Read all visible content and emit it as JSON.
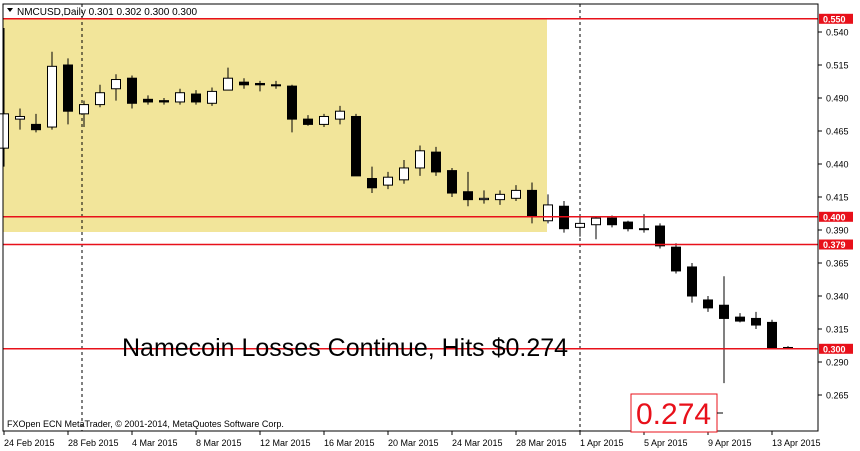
{
  "header": {
    "symbol_line": "NMCUSD,Daily  0.301 0.302 0.300 0.300"
  },
  "headline": "Namecoin Losses Continue, Hits $0.274",
  "copyright": "FXOpen ECN MetaTrader, © 2001-2014, MetaQuotes Software Corp.",
  "callout": "0.274",
  "colors": {
    "level_line": "#e8101a",
    "highlight": "#f2e59a",
    "candle": "#000000",
    "axis": "#000000"
  },
  "chart_data": {
    "type": "candlestick",
    "title": "",
    "ylim": [
      0.255,
      0.555
    ],
    "y_ticks": [
      "0.540",
      "0.515",
      "0.490",
      "0.465",
      "0.440",
      "0.415",
      "0.390",
      "0.365",
      "0.340",
      "0.315",
      "0.290",
      "0.265"
    ],
    "x_ticks": [
      "24 Feb 2015",
      "28 Feb 2015",
      "4 Mar 2015",
      "8 Mar 2015",
      "12 Mar 2015",
      "16 Mar 2015",
      "20 Mar 2015",
      "24 Mar 2015",
      "28 Mar 2015",
      "1 Apr 2015",
      "5 Apr 2015",
      "9 Apr 2015",
      "13 Apr 2015"
    ],
    "levels": [
      {
        "value": 0.55,
        "label": "0.550"
      },
      {
        "value": 0.4,
        "label": "0.400"
      },
      {
        "value": 0.379,
        "label": "0.379"
      },
      {
        "value": 0.3,
        "label": "0.300"
      }
    ],
    "low_annotation": 0.274,
    "candles": [
      {
        "o": 0.452,
        "h": 0.543,
        "l": 0.438,
        "c": 0.478
      },
      {
        "o": 0.474,
        "h": 0.482,
        "l": 0.466,
        "c": 0.476
      },
      {
        "o": 0.47,
        "h": 0.478,
        "l": 0.464,
        "c": 0.466
      },
      {
        "o": 0.468,
        "h": 0.525,
        "l": 0.466,
        "c": 0.514
      },
      {
        "o": 0.515,
        "h": 0.52,
        "l": 0.47,
        "c": 0.48
      },
      {
        "o": 0.478,
        "h": 0.488,
        "l": 0.468,
        "c": 0.485
      },
      {
        "o": 0.485,
        "h": 0.5,
        "l": 0.483,
        "c": 0.494
      },
      {
        "o": 0.497,
        "h": 0.508,
        "l": 0.488,
        "c": 0.504
      },
      {
        "o": 0.505,
        "h": 0.507,
        "l": 0.482,
        "c": 0.486
      },
      {
        "o": 0.489,
        "h": 0.492,
        "l": 0.485,
        "c": 0.487
      },
      {
        "o": 0.488,
        "h": 0.49,
        "l": 0.485,
        "c": 0.487
      },
      {
        "o": 0.487,
        "h": 0.497,
        "l": 0.485,
        "c": 0.494
      },
      {
        "o": 0.493,
        "h": 0.496,
        "l": 0.485,
        "c": 0.487
      },
      {
        "o": 0.486,
        "h": 0.498,
        "l": 0.484,
        "c": 0.495
      },
      {
        "o": 0.496,
        "h": 0.513,
        "l": 0.496,
        "c": 0.505
      },
      {
        "o": 0.502,
        "h": 0.505,
        "l": 0.497,
        "c": 0.5
      },
      {
        "o": 0.501,
        "h": 0.503,
        "l": 0.495,
        "c": 0.5
      },
      {
        "o": 0.5,
        "h": 0.503,
        "l": 0.497,
        "c": 0.5
      },
      {
        "o": 0.499,
        "h": 0.5,
        "l": 0.464,
        "c": 0.474
      },
      {
        "o": 0.474,
        "h": 0.477,
        "l": 0.469,
        "c": 0.47
      },
      {
        "o": 0.47,
        "h": 0.478,
        "l": 0.468,
        "c": 0.476
      },
      {
        "o": 0.474,
        "h": 0.484,
        "l": 0.47,
        "c": 0.48
      },
      {
        "o": 0.476,
        "h": 0.478,
        "l": 0.431,
        "c": 0.431
      },
      {
        "o": 0.429,
        "h": 0.438,
        "l": 0.418,
        "c": 0.422
      },
      {
        "o": 0.424,
        "h": 0.434,
        "l": 0.421,
        "c": 0.43
      },
      {
        "o": 0.428,
        "h": 0.443,
        "l": 0.425,
        "c": 0.437
      },
      {
        "o": 0.437,
        "h": 0.454,
        "l": 0.431,
        "c": 0.45
      },
      {
        "o": 0.449,
        "h": 0.453,
        "l": 0.431,
        "c": 0.434
      },
      {
        "o": 0.435,
        "h": 0.437,
        "l": 0.415,
        "c": 0.418
      },
      {
        "o": 0.419,
        "h": 0.434,
        "l": 0.408,
        "c": 0.413
      },
      {
        "o": 0.413,
        "h": 0.42,
        "l": 0.41,
        "c": 0.414
      },
      {
        "o": 0.413,
        "h": 0.42,
        "l": 0.409,
        "c": 0.417
      },
      {
        "o": 0.414,
        "h": 0.424,
        "l": 0.412,
        "c": 0.42
      },
      {
        "o": 0.42,
        "h": 0.426,
        "l": 0.395,
        "c": 0.4
      },
      {
        "o": 0.397,
        "h": 0.417,
        "l": 0.395,
        "c": 0.409
      },
      {
        "o": 0.408,
        "h": 0.412,
        "l": 0.388,
        "c": 0.391
      },
      {
        "o": 0.392,
        "h": 0.4,
        "l": 0.385,
        "c": 0.395
      },
      {
        "o": 0.394,
        "h": 0.4,
        "l": 0.383,
        "c": 0.399
      },
      {
        "o": 0.399,
        "h": 0.401,
        "l": 0.392,
        "c": 0.394
      },
      {
        "o": 0.396,
        "h": 0.397,
        "l": 0.389,
        "c": 0.391
      },
      {
        "o": 0.391,
        "h": 0.402,
        "l": 0.388,
        "c": 0.391
      },
      {
        "o": 0.393,
        "h": 0.395,
        "l": 0.376,
        "c": 0.378
      },
      {
        "o": 0.377,
        "h": 0.38,
        "l": 0.357,
        "c": 0.359
      },
      {
        "o": 0.362,
        "h": 0.365,
        "l": 0.335,
        "c": 0.34
      },
      {
        "o": 0.337,
        "h": 0.34,
        "l": 0.328,
        "c": 0.331
      },
      {
        "o": 0.333,
        "h": 0.355,
        "l": 0.274,
        "c": 0.323
      },
      {
        "o": 0.324,
        "h": 0.327,
        "l": 0.32,
        "c": 0.321
      },
      {
        "o": 0.323,
        "h": 0.328,
        "l": 0.315,
        "c": 0.318
      },
      {
        "o": 0.32,
        "h": 0.322,
        "l": 0.3,
        "c": 0.3
      },
      {
        "o": 0.301,
        "h": 0.302,
        "l": 0.3,
        "c": 0.3
      }
    ]
  }
}
